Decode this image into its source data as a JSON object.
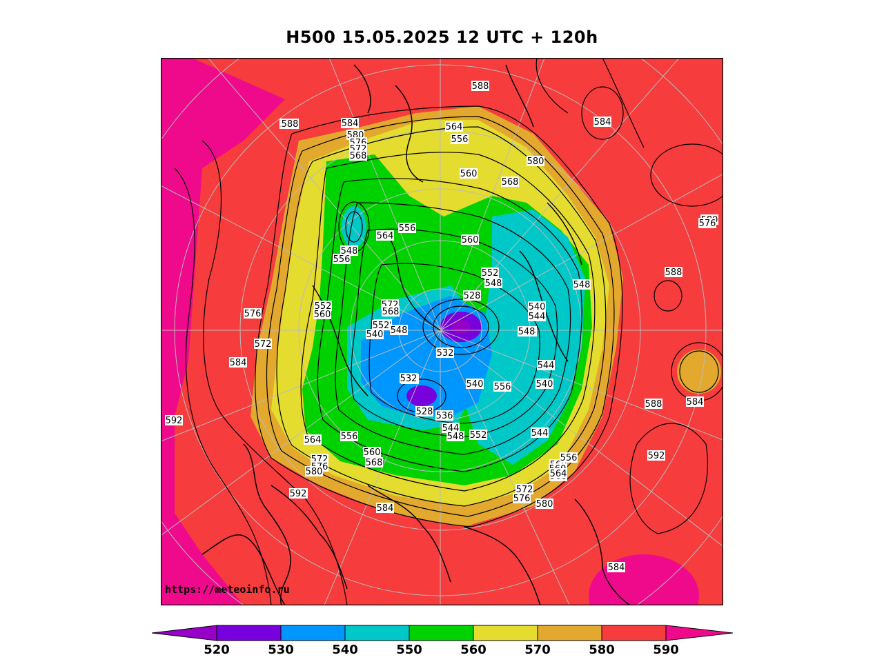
{
  "title": "H500  15.05.2025 12 UTC + 120h",
  "credit": "https://meteoinfo.ru",
  "colors": {
    "c590plus": "#ef0a8c",
    "c580": "#f63c3c",
    "c570": "#e3a92e",
    "c560": "#e5dc30",
    "c550": "#00d200",
    "c540": "#00c8c8",
    "c530": "#0096ff",
    "c520": "#7800dc",
    "cless520": "#9600c8"
  },
  "colorbar": {
    "ticks": [
      "520",
      "530",
      "540",
      "550",
      "560",
      "570",
      "580",
      "590"
    ],
    "segments": [
      "#9600c8",
      "#7800dc",
      "#0096ff",
      "#00c8c8",
      "#00d200",
      "#e5dc30",
      "#e3a92e",
      "#f63c3c",
      "#ef0a8c"
    ]
  },
  "contour_labels": [
    "588",
    "584",
    "580",
    "576",
    "572",
    "568",
    "564",
    "556",
    "560",
    "580",
    "568",
    "584",
    "584",
    "588",
    "580",
    "576",
    "584",
    "588",
    "592",
    "592",
    "584",
    "592",
    "588",
    "584",
    "564",
    "556",
    "560",
    "568",
    "572",
    "576",
    "580",
    "592",
    "552",
    "548",
    "556",
    "560",
    "576",
    "572",
    "584",
    "564",
    "556",
    "560",
    "548",
    "552",
    "540",
    "548",
    "532",
    "528",
    "536",
    "544",
    "548",
    "552",
    "556",
    "544",
    "560",
    "568",
    "572",
    "576",
    "580",
    "540",
    "544",
    "548",
    "548",
    "552",
    "556",
    "560",
    "564",
    "528",
    "532",
    "572",
    "568",
    "552",
    "540",
    "548",
    "544",
    "540",
    "532"
  ]
}
